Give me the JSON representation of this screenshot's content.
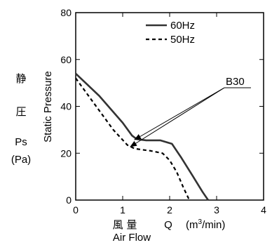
{
  "chart_data": {
    "type": "line",
    "title": "",
    "xlabel_jp": "風 量",
    "xlabel_symbol": "Q",
    "xlabel_unit_prefix": "(m",
    "xlabel_unit_sup": "3",
    "xlabel_unit_suffix": "/min)",
    "xlabel_en": "Air Flow",
    "ylabel_en": "Static Pressure",
    "ylabel_jp_1": "静",
    "ylabel_jp_2": "圧",
    "ylabel_symbol": "Ps",
    "ylabel_unit": "(Pa)",
    "xlim": [
      0,
      4
    ],
    "ylim": [
      0,
      80
    ],
    "x_ticks": [
      "0",
      "1",
      "2",
      "3",
      "4"
    ],
    "y_ticks": [
      "0",
      "20",
      "40",
      "60",
      "80"
    ],
    "grid": false,
    "legend_position": "top-right",
    "annotation": "B30",
    "series": [
      {
        "name": "60Hz",
        "style": "solid",
        "color": "#333333",
        "points": [
          [
            0,
            54
          ],
          [
            0.5,
            44.5
          ],
          [
            1.0,
            33
          ],
          [
            1.2,
            27.5
          ],
          [
            1.3,
            26
          ],
          [
            1.5,
            25.5
          ],
          [
            1.8,
            25.5
          ],
          [
            2.05,
            24
          ],
          [
            2.25,
            18
          ],
          [
            2.5,
            10
          ],
          [
            2.7,
            3.5
          ],
          [
            2.82,
            0
          ]
        ]
      },
      {
        "name": "50Hz",
        "style": "dashed",
        "color": "#000000",
        "points": [
          [
            0,
            52
          ],
          [
            0.4,
            41
          ],
          [
            0.8,
            30
          ],
          [
            1.1,
            23.5
          ],
          [
            1.25,
            22
          ],
          [
            1.4,
            21.5
          ],
          [
            1.6,
            21
          ],
          [
            1.85,
            20
          ],
          [
            2.0,
            17
          ],
          [
            2.15,
            12
          ],
          [
            2.3,
            5
          ],
          [
            2.42,
            0
          ]
        ]
      }
    ]
  }
}
